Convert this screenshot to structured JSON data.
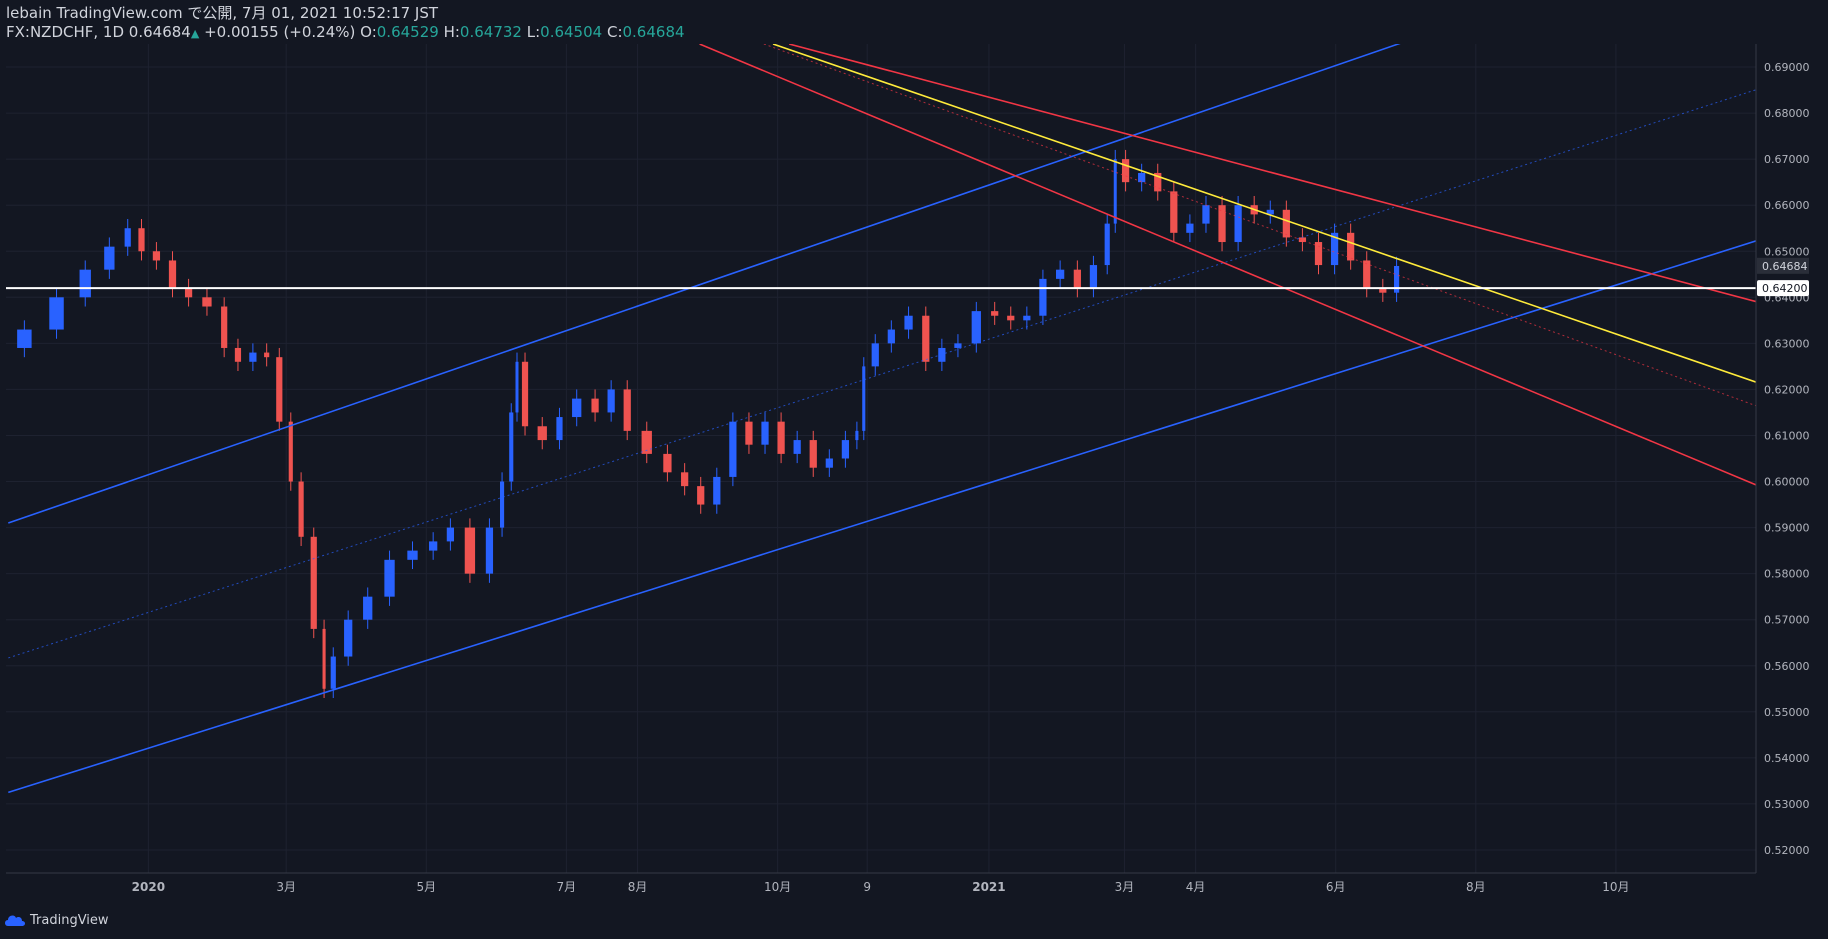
{
  "header": {
    "line1": "lebain TradingView.com で公開, 7月 01, 2021 10:52:17 JST",
    "symbol": "FX:NZDCHF, 1D",
    "last": "0.64684",
    "change": "+0.00155 (+0.24%)",
    "o_label": "O:",
    "o": "0.64529",
    "h_label": "H:",
    "h": "0.64732",
    "l_label": "L:",
    "l": "0.64504",
    "c_label": "C:",
    "c": "0.64684"
  },
  "footer": {
    "brand": "TradingView"
  },
  "colors": {
    "background": "#131722",
    "up": "#2962ff",
    "down": "#ef5350",
    "channel": "#2962ff",
    "red_channel": "#f23645",
    "yellow": "#ffeb3b",
    "level": "#ffffff"
  },
  "chart_data": {
    "type": "candlestick",
    "ylim": [
      0.515,
      0.695
    ],
    "y_ticks": [
      "0.69000",
      "0.68000",
      "0.67000",
      "0.66000",
      "0.65000",
      "0.64000",
      "0.63000",
      "0.62000",
      "0.61000",
      "0.60000",
      "0.59000",
      "0.58000",
      "0.57000",
      "0.56000",
      "0.55000",
      "0.54000",
      "0.53000",
      "0.52000"
    ],
    "x_ticks": [
      {
        "label": "2020",
        "date": "2020-01-01",
        "bold": true
      },
      {
        "label": "3月",
        "date": "2020-03-01"
      },
      {
        "label": "5月",
        "date": "2020-05-01"
      },
      {
        "label": "7月",
        "date": "2020-07-01"
      },
      {
        "label": "8月",
        "date": "2020-08-01"
      },
      {
        "label": "10月",
        "date": "2020-10-01"
      },
      {
        "label": "9",
        "date": "2020-11-09"
      },
      {
        "label": "2021",
        "date": "2021-01-01",
        "bold": true
      },
      {
        "label": "3月",
        "date": "2021-03-01"
      },
      {
        "label": "4月",
        "date": "2021-04-01"
      },
      {
        "label": "6月",
        "date": "2021-06-01"
      },
      {
        "label": "8月",
        "date": "2021-08-01"
      },
      {
        "label": "10月",
        "date": "2021-10-01"
      }
    ],
    "price_labels": {
      "last": "0.64684",
      "level": "0.64200"
    },
    "horizontal_level": 0.642,
    "trendlines": [
      {
        "kind": "blue-upper",
        "p1": [
          "2019-11-01",
          0.591
        ],
        "p2": [
          "2021-02-26",
          0.674
        ],
        "extend": true
      },
      {
        "kind": "blue-lower",
        "p1": [
          "2019-11-01",
          0.5325
        ],
        "p2": [
          "2020-03-23",
          0.555
        ],
        "extend": true
      },
      {
        "kind": "blue-mid-dotted",
        "p1": [
          "2019-11-01",
          0.5617
        ],
        "p2": [
          "2021-02-26",
          0.64
        ],
        "extend": true
      },
      {
        "kind": "red-upper",
        "p1": [
          "2020-10-06",
          0.695
        ],
        "p2": [
          "2021-02-26",
          0.676
        ],
        "extend": true
      },
      {
        "kind": "red-lower",
        "p1": [
          "2020-08-28",
          0.695
        ],
        "p2": [
          "2021-03-01",
          0.6565
        ],
        "extend": true
      },
      {
        "kind": "red-mid-dotted",
        "p1": [
          "2020-09-25",
          0.695
        ],
        "p2": [
          "2021-02-26",
          0.667
        ],
        "extend": true
      },
      {
        "kind": "yellow",
        "p1": [
          "2020-09-29",
          0.695
        ],
        "p2": [
          "2021-06-30",
          0.648
        ],
        "extend": true
      }
    ],
    "candles": [
      [
        "2019-11-01",
        0.629
      ],
      [
        "2019-11-15",
        0.633
      ],
      [
        "2019-11-29",
        0.64
      ],
      [
        "2019-12-10",
        0.646
      ],
      [
        "2019-12-20",
        0.651
      ],
      [
        "2019-12-26",
        0.655
      ],
      [
        "2020-01-01",
        0.65
      ],
      [
        "2020-01-08",
        0.648
      ],
      [
        "2020-01-15",
        0.642
      ],
      [
        "2020-01-22",
        0.64
      ],
      [
        "2020-01-31",
        0.638
      ],
      [
        "2020-02-06",
        0.629
      ],
      [
        "2020-02-12",
        0.626
      ],
      [
        "2020-02-19",
        0.628
      ],
      [
        "2020-02-24",
        0.627
      ],
      [
        "2020-03-01",
        0.613
      ],
      [
        "2020-03-05",
        0.6
      ],
      [
        "2020-03-10",
        0.588
      ],
      [
        "2020-03-16",
        0.568
      ],
      [
        "2020-03-19",
        0.555
      ],
      [
        "2020-03-24",
        0.562
      ],
      [
        "2020-04-01",
        0.57
      ],
      [
        "2020-04-10",
        0.575
      ],
      [
        "2020-04-20",
        0.583
      ],
      [
        "2020-04-30",
        0.585
      ],
      [
        "2020-05-08",
        0.587
      ],
      [
        "2020-05-15",
        0.59
      ],
      [
        "2020-05-25",
        0.58
      ],
      [
        "2020-06-01",
        0.59
      ],
      [
        "2020-06-05",
        0.6
      ],
      [
        "2020-06-09",
        0.615
      ],
      [
        "2020-06-10",
        0.626
      ],
      [
        "2020-06-16",
        0.612
      ],
      [
        "2020-06-25",
        0.609
      ],
      [
        "2020-07-01",
        0.614
      ],
      [
        "2020-07-10",
        0.618
      ],
      [
        "2020-07-17",
        0.615
      ],
      [
        "2020-07-24",
        0.62
      ],
      [
        "2020-07-31",
        0.611
      ],
      [
        "2020-08-10",
        0.606
      ],
      [
        "2020-08-18",
        0.602
      ],
      [
        "2020-08-25",
        0.599
      ],
      [
        "2020-09-01",
        0.595
      ],
      [
        "2020-09-08",
        0.601
      ],
      [
        "2020-09-15",
        0.613
      ],
      [
        "2020-09-22",
        0.608
      ],
      [
        "2020-09-29",
        0.613
      ],
      [
        "2020-10-06",
        0.606
      ],
      [
        "2020-10-13",
        0.609
      ],
      [
        "2020-10-20",
        0.603
      ],
      [
        "2020-10-27",
        0.605
      ],
      [
        "2020-11-03",
        0.609
      ],
      [
        "2020-11-06",
        0.611
      ],
      [
        "2020-11-09",
        0.625
      ],
      [
        "2020-11-16",
        0.63
      ],
      [
        "2020-11-23",
        0.633
      ],
      [
        "2020-12-01",
        0.636
      ],
      [
        "2020-12-08",
        0.626
      ],
      [
        "2020-12-15",
        0.629
      ],
      [
        "2020-12-22",
        0.63
      ],
      [
        "2020-12-31",
        0.637
      ],
      [
        "2021-01-07",
        0.636
      ],
      [
        "2021-01-14",
        0.635
      ],
      [
        "2021-01-21",
        0.636
      ],
      [
        "2021-01-28",
        0.644
      ],
      [
        "2021-02-05",
        0.646
      ],
      [
        "2021-02-12",
        0.642
      ],
      [
        "2021-02-19",
        0.647
      ],
      [
        "2021-02-24",
        0.656
      ],
      [
        "2021-02-26",
        0.67
      ],
      [
        "2021-03-05",
        0.665
      ],
      [
        "2021-03-12",
        0.667
      ],
      [
        "2021-03-19",
        0.663
      ],
      [
        "2021-03-26",
        0.654
      ],
      [
        "2021-04-02",
        0.656
      ],
      [
        "2021-04-09",
        0.66
      ],
      [
        "2021-04-16",
        0.652
      ],
      [
        "2021-04-23",
        0.66
      ],
      [
        "2021-04-30",
        0.658
      ],
      [
        "2021-05-07",
        0.659
      ],
      [
        "2021-05-14",
        0.653
      ],
      [
        "2021-05-21",
        0.652
      ],
      [
        "2021-05-28",
        0.647
      ],
      [
        "2021-06-04",
        0.654
      ],
      [
        "2021-06-11",
        0.648
      ],
      [
        "2021-06-18",
        0.642
      ],
      [
        "2021-06-25",
        0.641
      ],
      [
        "2021-06-30",
        0.6468
      ]
    ]
  }
}
